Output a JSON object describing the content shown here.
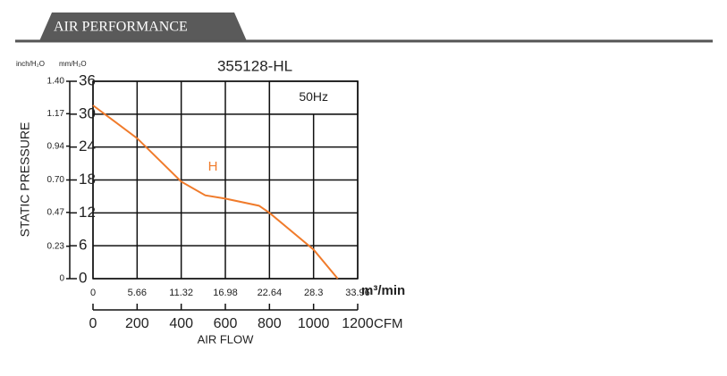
{
  "header": {
    "title": "AIR PERFORMANCE"
  },
  "chart_data": {
    "type": "line",
    "title": "355128-HL",
    "annotation": "50Hz",
    "y_label": "STATIC PRESSURE",
    "y_unit": "mm/H₂O",
    "y2_unit": "inch/H₂O",
    "x_label": "m³/min",
    "x2_label": "CFM",
    "x_title": "AIR FLOW",
    "xlim": [
      0,
      33.96
    ],
    "xticks": [
      0,
      5.66,
      11.32,
      16.98,
      22.64,
      28.3,
      33.96
    ],
    "x2lim": [
      0,
      1200
    ],
    "x2ticks": [
      0,
      200,
      400,
      600,
      800,
      1000,
      1200
    ],
    "ylim": [
      0,
      36
    ],
    "yticks": [
      0,
      6,
      12,
      18,
      24,
      30,
      36
    ],
    "y2lim": [
      0,
      1.4
    ],
    "y2ticks": [
      0,
      0.23,
      0.47,
      {
        "value": 0.7,
        "label": "0.70"
      },
      0.94,
      1.17,
      {
        "value": 1.4,
        "label": "1.40"
      }
    ],
    "grid": true,
    "series": [
      {
        "name": "H",
        "color": "#f07b2b",
        "x": [
          0,
          5.66,
          11.32,
          14.4,
          16.98,
          21.3,
          22.64,
          28.3,
          31.4
        ],
        "values": [
          31.6,
          25.6,
          17.7,
          15.2,
          14.6,
          13.3,
          12,
          5.3,
          0
        ]
      }
    ]
  }
}
